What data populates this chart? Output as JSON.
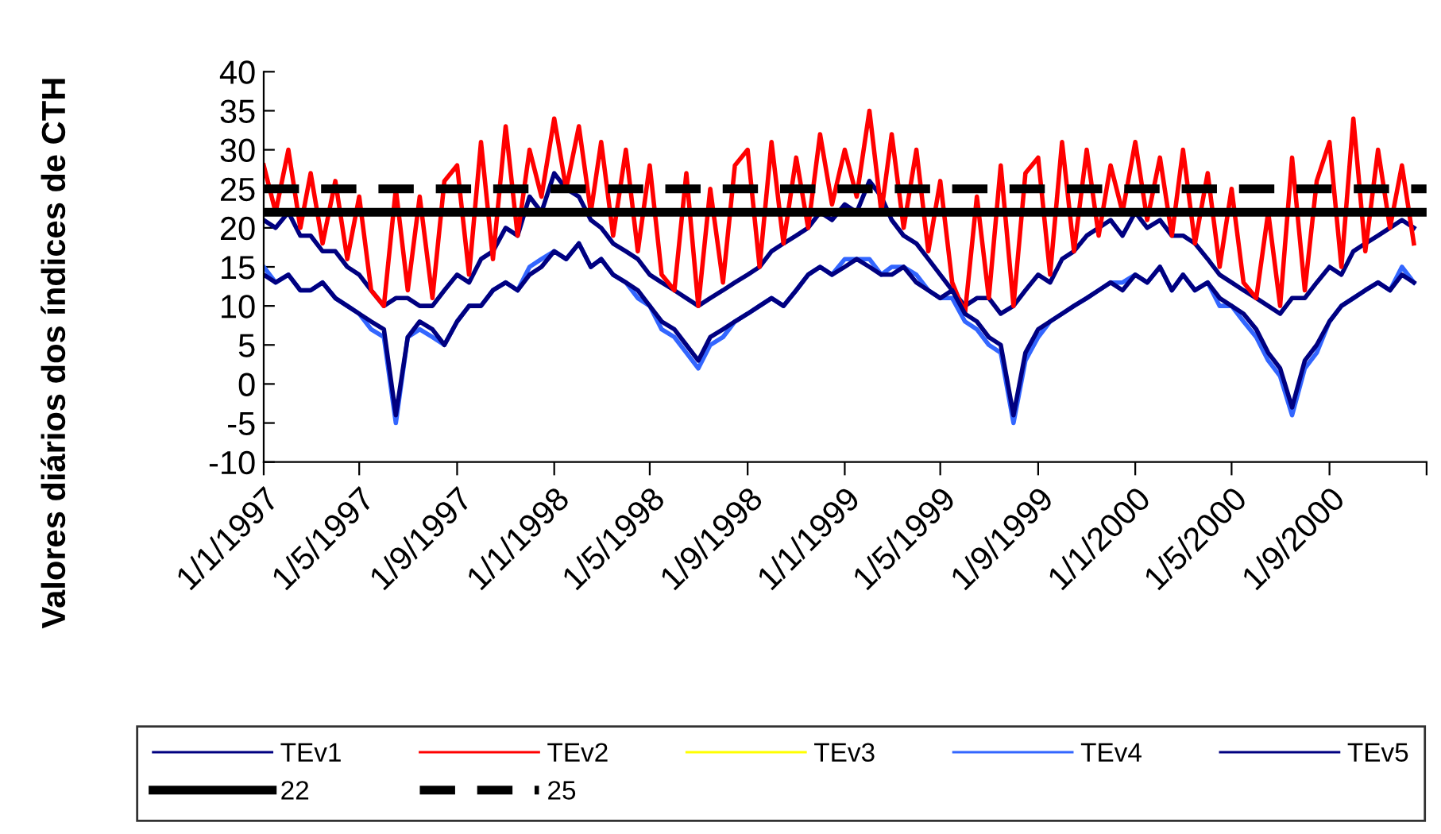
{
  "chart_data": {
    "type": "line",
    "ylabel": "Valores diários dos índices de CTH",
    "x": [
      "1997-01-01",
      "1997-01-16",
      "1997-02-01",
      "1997-02-16",
      "1997-03-01",
      "1997-03-16",
      "1997-04-01",
      "1997-04-16",
      "1997-05-01",
      "1997-05-16",
      "1997-06-01",
      "1997-06-16",
      "1997-07-01",
      "1997-07-16",
      "1997-08-01",
      "1997-08-16",
      "1997-09-01",
      "1997-09-16",
      "1997-10-01",
      "1997-10-16",
      "1997-11-01",
      "1997-11-16",
      "1997-12-01",
      "1997-12-16",
      "1998-01-01",
      "1998-01-16",
      "1998-02-01",
      "1998-02-16",
      "1998-03-01",
      "1998-03-16",
      "1998-04-01",
      "1998-04-16",
      "1998-05-01",
      "1998-05-16",
      "1998-06-01",
      "1998-06-16",
      "1998-07-01",
      "1998-07-16",
      "1998-08-01",
      "1998-08-16",
      "1998-09-01",
      "1998-09-16",
      "1998-10-01",
      "1998-10-16",
      "1998-11-01",
      "1998-11-16",
      "1998-12-01",
      "1998-12-16",
      "1999-01-01",
      "1999-01-16",
      "1999-02-01",
      "1999-02-16",
      "1999-03-01",
      "1999-03-16",
      "1999-04-01",
      "1999-04-16",
      "1999-05-01",
      "1999-05-16",
      "1999-06-01",
      "1999-06-16",
      "1999-07-01",
      "1999-07-16",
      "1999-08-01",
      "1999-08-16",
      "1999-09-01",
      "1999-09-16",
      "1999-10-01",
      "1999-10-16",
      "1999-11-01",
      "1999-11-16",
      "1999-12-01",
      "1999-12-16",
      "2000-01-01",
      "2000-01-16",
      "2000-02-01",
      "2000-02-16",
      "2000-03-01",
      "2000-03-16",
      "2000-04-01",
      "2000-04-16",
      "2000-05-01",
      "2000-05-16",
      "2000-06-01",
      "2000-06-16",
      "2000-07-01",
      "2000-07-16",
      "2000-08-01",
      "2000-08-16",
      "2000-09-01",
      "2000-09-16",
      "2000-10-01",
      "2000-10-16",
      "2000-11-01",
      "2000-11-16",
      "2000-12-01",
      "2000-12-16"
    ],
    "series": [
      {
        "name": "TEv1",
        "color": "#000080",
        "values": [
          21,
          20,
          22,
          19,
          19,
          17,
          17,
          15,
          14,
          12,
          10,
          11,
          11,
          10,
          10,
          12,
          14,
          13,
          16,
          17,
          20,
          19,
          24,
          22,
          27,
          25,
          24,
          21,
          20,
          18,
          17,
          16,
          14,
          13,
          12,
          11,
          10,
          11,
          12,
          13,
          14,
          15,
          17,
          18,
          19,
          20,
          22,
          21,
          23,
          22,
          26,
          24,
          21,
          19,
          18,
          16,
          14,
          12,
          10,
          11,
          11,
          9,
          10,
          12,
          14,
          13,
          16,
          17,
          19,
          20,
          21,
          19,
          22,
          20,
          21,
          19,
          19,
          18,
          16,
          14,
          13,
          12,
          11,
          10,
          9,
          11,
          11,
          13,
          15,
          14,
          17,
          18,
          19,
          20,
          21,
          20
        ]
      },
      {
        "name": "TEv2",
        "color": "#ff0000",
        "values": [
          28,
          22,
          30,
          20,
          27,
          18,
          26,
          16,
          24,
          12,
          10,
          25,
          12,
          24,
          11,
          26,
          28,
          14,
          31,
          16,
          33,
          19,
          30,
          24,
          34,
          25,
          33,
          22,
          31,
          19,
          30,
          17,
          28,
          14,
          12,
          27,
          10,
          25,
          13,
          28,
          30,
          15,
          31,
          18,
          29,
          20,
          32,
          23,
          30,
          24,
          35,
          22,
          32,
          20,
          30,
          17,
          26,
          13,
          9,
          24,
          11,
          28,
          10,
          27,
          29,
          14,
          31,
          17,
          30,
          19,
          28,
          22,
          31,
          21,
          29,
          19,
          30,
          18,
          27,
          15,
          25,
          13,
          11,
          22,
          10,
          29,
          12,
          26,
          31,
          15,
          34,
          17,
          30,
          20,
          28,
          18
        ]
      },
      {
        "name": "TEv3",
        "color": "#ffff00",
        "values": [
          null,
          null,
          null,
          null,
          null,
          null,
          null,
          null,
          null,
          null,
          null,
          null,
          null,
          null,
          null,
          null,
          null,
          null,
          null,
          null,
          null,
          null,
          null,
          null,
          null,
          null,
          null,
          null,
          null,
          null,
          null,
          null,
          null,
          null,
          null,
          null,
          null,
          null,
          null,
          null,
          null,
          null,
          null,
          null,
          null,
          null,
          null,
          null,
          null,
          null,
          null,
          null,
          null,
          null,
          null,
          null,
          null,
          null,
          null,
          null,
          null,
          null,
          null,
          null,
          null,
          null,
          null,
          null,
          null,
          null,
          null,
          null,
          null,
          null,
          null,
          null,
          null,
          null,
          null,
          null,
          null,
          null,
          null,
          null,
          null,
          null,
          null,
          null,
          null,
          null,
          null,
          null,
          null,
          null,
          null,
          null
        ]
      },
      {
        "name": "TEv4",
        "color": "#3366ff",
        "values": [
          15,
          13,
          14,
          12,
          12,
          13,
          11,
          10,
          9,
          7,
          6,
          -5,
          6,
          7,
          6,
          5,
          8,
          10,
          10,
          12,
          13,
          12,
          15,
          16,
          17,
          16,
          18,
          15,
          16,
          14,
          13,
          11,
          10,
          7,
          6,
          4,
          2,
          5,
          6,
          8,
          9,
          10,
          11,
          10,
          12,
          14,
          15,
          14,
          16,
          16,
          16,
          14,
          15,
          15,
          14,
          12,
          11,
          11,
          8,
          7,
          5,
          4,
          -5,
          3,
          6,
          8,
          9,
          10,
          11,
          12,
          13,
          13,
          14,
          13,
          15,
          12,
          14,
          12,
          13,
          10,
          10,
          8,
          6,
          3,
          1,
          -4,
          2,
          4,
          8,
          10,
          11,
          12,
          13,
          12,
          15,
          13
        ]
      },
      {
        "name": "TEv5",
        "color": "#000080",
        "values": [
          14,
          13,
          14,
          12,
          12,
          13,
          11,
          10,
          9,
          8,
          7,
          -4,
          6,
          8,
          7,
          5,
          8,
          10,
          10,
          12,
          13,
          12,
          14,
          15,
          17,
          16,
          18,
          15,
          16,
          14,
          13,
          12,
          10,
          8,
          7,
          5,
          3,
          6,
          7,
          8,
          9,
          10,
          11,
          10,
          12,
          14,
          15,
          14,
          15,
          16,
          15,
          14,
          14,
          15,
          13,
          12,
          11,
          12,
          9,
          8,
          6,
          5,
          -4,
          4,
          7,
          8,
          9,
          10,
          11,
          12,
          13,
          12,
          14,
          13,
          15,
          12,
          14,
          12,
          13,
          11,
          10,
          9,
          7,
          4,
          2,
          -3,
          3,
          5,
          8,
          10,
          11,
          12,
          13,
          12,
          14,
          13
        ]
      }
    ],
    "ref_lines": [
      {
        "axis": "y",
        "value": 22,
        "label": "22",
        "color": "#000000",
        "line_style": "solid"
      },
      {
        "axis": "y",
        "value": 25,
        "label": "25",
        "color": "#000000",
        "line_style": "dashed"
      }
    ],
    "xlim": [
      "1997-01-01",
      "2001-01-01"
    ],
    "xticks": [
      {
        "value": "1997-01-01",
        "label": "1/1/1997"
      },
      {
        "value": "1997-05-01",
        "label": "1/5/1997"
      },
      {
        "value": "1997-09-01",
        "label": "1/9/1997"
      },
      {
        "value": "1998-01-01",
        "label": "1/1/1998"
      },
      {
        "value": "1998-05-01",
        "label": "1/5/1998"
      },
      {
        "value": "1998-09-01",
        "label": "1/9/1998"
      },
      {
        "value": "1999-01-01",
        "label": "1/1/1999"
      },
      {
        "value": "1999-05-01",
        "label": "1/5/1999"
      },
      {
        "value": "1999-09-01",
        "label": "1/9/1999"
      },
      {
        "value": "2000-01-01",
        "label": "1/1/2000"
      },
      {
        "value": "2000-05-01",
        "label": "1/5/2000"
      },
      {
        "value": "2000-09-01",
        "label": "1/9/2000"
      },
      {
        "value": "2001-01-01",
        "label": null
      }
    ],
    "ylim": [
      -10,
      40
    ],
    "yticks": [
      -10,
      -5,
      0,
      5,
      10,
      15,
      20,
      25,
      30,
      35,
      40
    ],
    "grid": false,
    "legend": "bottom",
    "marker": "none"
  }
}
